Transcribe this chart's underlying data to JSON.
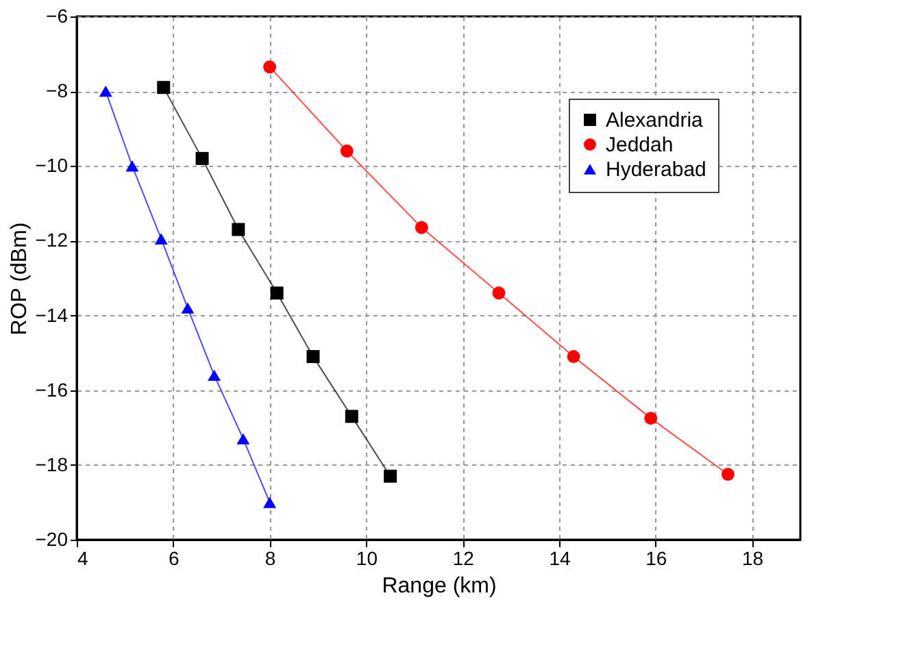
{
  "chart_data": {
    "type": "line",
    "xlabel": "Range (km)",
    "ylabel": "ROP (dBm)",
    "xlim": [
      4,
      19
    ],
    "xticks": [
      4,
      6,
      8,
      10,
      12,
      14,
      16,
      18
    ],
    "ylim": [
      -20,
      -6
    ],
    "yticks": [
      -20,
      -18,
      -16,
      -14,
      -12,
      -10,
      -8,
      -6
    ],
    "grid": true,
    "legend": "top right",
    "series": [
      {
        "name": "Alexandria",
        "color": "#000000",
        "marker": "square",
        "x": [
          5.8,
          6.6,
          7.35,
          8.15,
          8.9,
          9.7,
          10.5
        ],
        "values": [
          -7.9,
          -9.8,
          -11.7,
          -13.4,
          -15.1,
          -16.7,
          -18.3
        ]
      },
      {
        "name": "Jeddah",
        "color": "#ff0000",
        "marker": "circle",
        "x": [
          8,
          9.6,
          11.15,
          12.75,
          14.3,
          15.9,
          17.5
        ],
        "values": [
          -7.35,
          -9.6,
          -11.65,
          -13.4,
          -15.1,
          -16.75,
          -18.25
        ]
      },
      {
        "name": "Hyderabad",
        "color": "#0000ff",
        "marker": "triangle",
        "x": [
          4.6,
          5.15,
          5.75,
          6.3,
          6.85,
          7.45,
          8
        ],
        "values": [
          -8,
          -10,
          -11.95,
          -13.8,
          -15.6,
          -17.3,
          -19
        ]
      }
    ]
  }
}
